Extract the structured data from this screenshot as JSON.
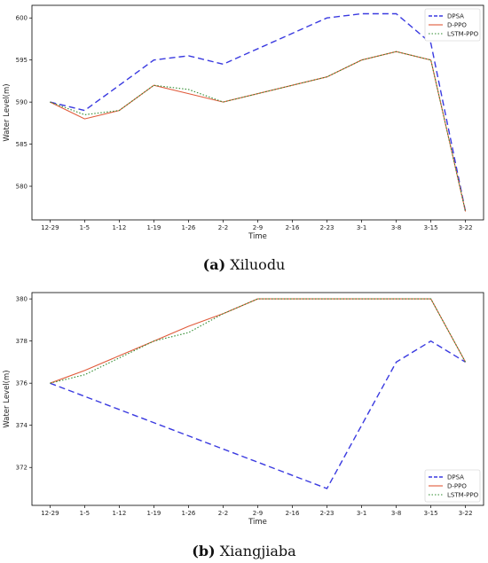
{
  "chart_data": [
    {
      "type": "line",
      "caption_letter": "a",
      "caption_name": "Xiluodu",
      "xlabel": "Time",
      "ylabel": "Water Level(m)",
      "categories": [
        "12-29",
        "1-5",
        "1-12",
        "1-19",
        "1-26",
        "2-2",
        "2-9",
        "2-16",
        "2-23",
        "3-1",
        "3-8",
        "3-15",
        "3-22"
      ],
      "ylim": [
        576,
        601.5
      ],
      "yticks": [
        580,
        585,
        590,
        595,
        600
      ],
      "legend_position": "top-right",
      "grid": false,
      "series": [
        {
          "name": "DPSA",
          "color": "#3a3ae0",
          "style": "dashed",
          "values": [
            590,
            589,
            592,
            595,
            595.5,
            594.5,
            null,
            null,
            600,
            600.5,
            600.5,
            597,
            577
          ]
        },
        {
          "name": "D-PPO",
          "color": "#e05a3a",
          "style": "solid",
          "values": [
            590,
            588,
            589,
            592,
            591,
            590,
            null,
            null,
            593,
            595,
            596,
            595,
            577
          ]
        },
        {
          "name": "LSTM-PPO",
          "color": "#2e8b2e",
          "style": "dotted",
          "values": [
            590,
            588.5,
            589,
            592,
            591.5,
            590,
            null,
            null,
            593,
            595,
            596,
            595,
            577
          ]
        }
      ]
    },
    {
      "type": "line",
      "caption_letter": "b",
      "caption_name": "Xiangjiaba",
      "xlabel": "Time",
      "ylabel": "Water Level(m)",
      "categories": [
        "12-29",
        "1-5",
        "1-12",
        "1-19",
        "1-26",
        "2-2",
        "2-9",
        "2-16",
        "2-23",
        "3-1",
        "3-8",
        "3-15",
        "3-22"
      ],
      "ylim": [
        370.2,
        380.3
      ],
      "yticks": [
        372,
        374,
        376,
        378,
        380
      ],
      "legend_position": "bottom-right",
      "grid": false,
      "series": [
        {
          "name": "DPSA",
          "color": "#3a3ae0",
          "style": "dashed",
          "values": [
            376,
            null,
            null,
            null,
            null,
            null,
            null,
            null,
            371,
            null,
            377,
            378,
            377
          ]
        },
        {
          "name": "D-PPO",
          "color": "#e05a3a",
          "style": "solid",
          "values": [
            376,
            376.6,
            377.3,
            378,
            378.7,
            379.3,
            380,
            380,
            380,
            380,
            380,
            380,
            377
          ]
        },
        {
          "name": "LSTM-PPO",
          "color": "#2e8b2e",
          "style": "dotted",
          "values": [
            376,
            376.4,
            377.2,
            378,
            378.4,
            379.3,
            380,
            380,
            380,
            380,
            380,
            380,
            377
          ]
        }
      ]
    }
  ]
}
